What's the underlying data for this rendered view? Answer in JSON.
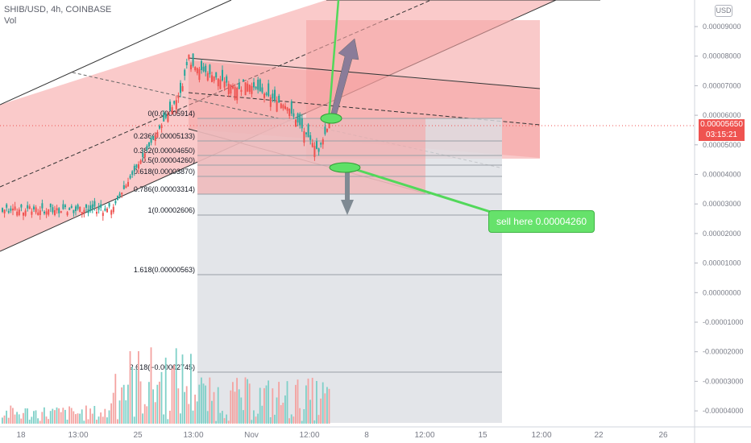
{
  "header": {
    "symbol": "SHIB/USD, 4h, COINBASE",
    "volume_label": "Vol"
  },
  "axis": {
    "currency_button": "USD",
    "y_labels": [
      "0.00009000",
      "0.00008000",
      "0.00007000",
      "0.00006000",
      "0.00005000",
      "0.00004000",
      "0.00003000",
      "0.00002000",
      "0.00001000",
      "0.00000000",
      "-0.00001000",
      "-0.00002000",
      "-0.00003000",
      "-0.00004000"
    ],
    "x_labels": [
      "18",
      "13:00",
      "25",
      "13:00",
      "Nov",
      "12:00",
      "8",
      "12:00",
      "15",
      "12:00",
      "22",
      "26"
    ]
  },
  "price_badge": {
    "price": "0.00005650",
    "countdown": "03:15:21"
  },
  "fibonacci": {
    "levels": [
      "0(0.00005914)",
      "0.236(0.00005133)",
      "0.382(0.00004650)",
      "0.5(0.00004260)",
      "0.618(0.00003870)",
      "0.786(0.00003314)",
      "1(0.00002606)",
      "1.618(0.00000563)",
      "2.618(−0.00002745)"
    ]
  },
  "annotation": {
    "callout_text": "sell here 0.00004260"
  },
  "colors": {
    "up": "#26a69a",
    "down": "#ef5350",
    "channel_fill": "#f7a5a5",
    "fib_fill": "#e6e7e9",
    "callout": "#66e26b",
    "arrow": "#7f8a93"
  }
}
